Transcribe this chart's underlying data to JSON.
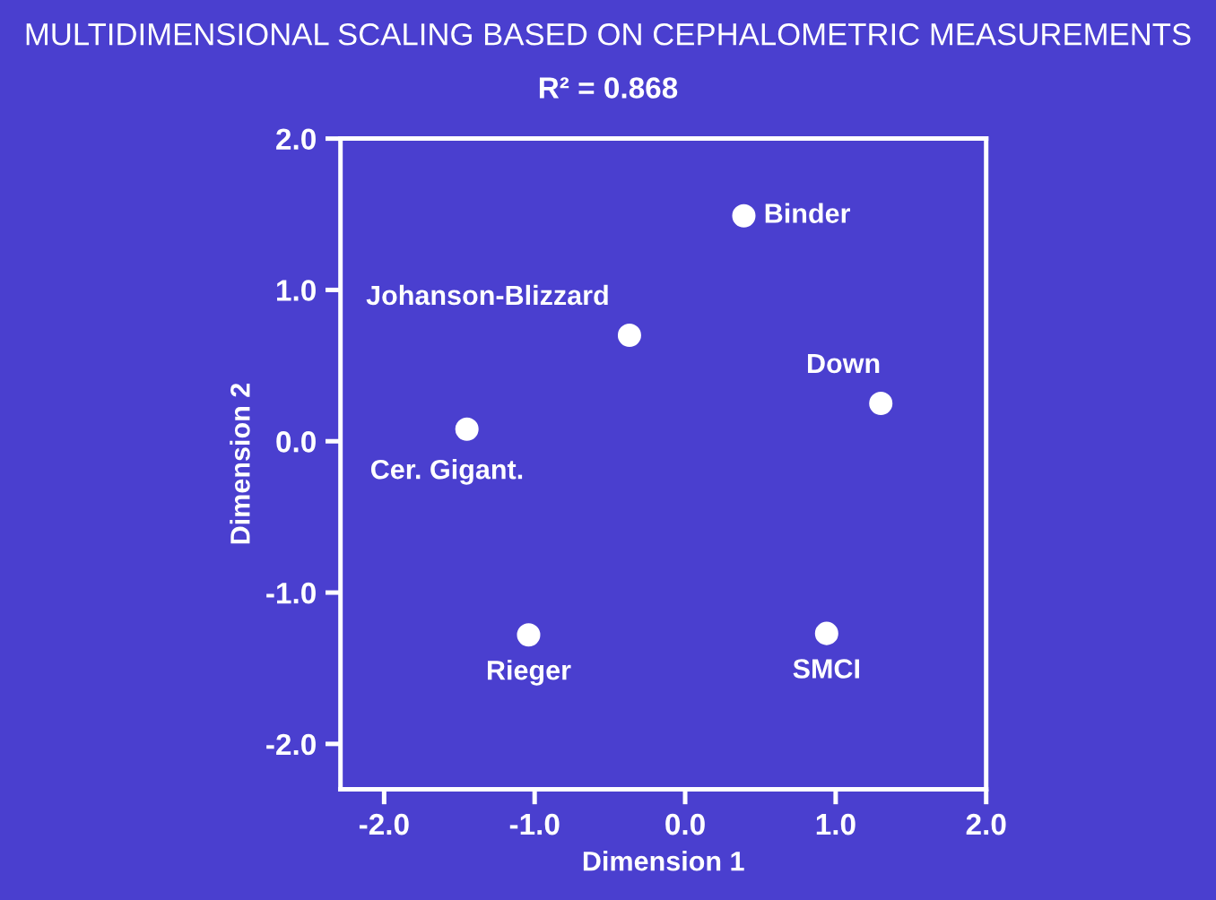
{
  "chart_data": {
    "type": "scatter",
    "title": "MULTIDIMENSIONAL SCALING BASED ON CEPHALOMETRIC MEASUREMENTS",
    "subtitle": "R² = 0.868",
    "xlabel": "Dimension 1",
    "ylabel": "Dimension 2",
    "series": [
      {
        "color": "#ffffff",
        "x": [
          0.39,
          -0.37,
          1.3,
          -1.45,
          -1.04,
          0.94
        ],
        "values": [
          1.49,
          0.7,
          0.25,
          0.08,
          -1.28,
          -1.27
        ]
      }
    ],
    "annotations": [
      {
        "text": "Binder",
        "x": 0.39,
        "y": 1.49
      },
      {
        "text": "Johanson-Blizzard",
        "x": -0.37,
        "y": 0.7
      },
      {
        "text": "Down",
        "x": 1.3,
        "y": 0.25
      },
      {
        "text": "Cer. Gigant.",
        "x": -1.45,
        "y": 0.08
      },
      {
        "text": "Rieger",
        "x": -1.04,
        "y": -1.28
      },
      {
        "text": "SMCI",
        "x": 0.94,
        "y": -1.27
      }
    ],
    "xlim": [
      -2.29,
      2.0
    ],
    "ylim": [
      -2.3,
      2.0
    ],
    "xticks": [
      {
        "value": -2,
        "label": "-2.0"
      },
      {
        "value": -1,
        "label": "-1.0"
      },
      {
        "value": 0,
        "label": "0.0"
      },
      {
        "value": 1,
        "label": "1.0"
      },
      {
        "value": 2,
        "label": "2.0"
      }
    ],
    "yticks": [
      {
        "value": -2,
        "label": "-2.0"
      },
      {
        "value": -1,
        "label": "-1.0"
      },
      {
        "value": 0,
        "label": "0.0"
      },
      {
        "value": 1,
        "label": "1.0"
      },
      {
        "value": 2,
        "label": "2.0"
      }
    ],
    "grid": false,
    "marker": "circle"
  }
}
